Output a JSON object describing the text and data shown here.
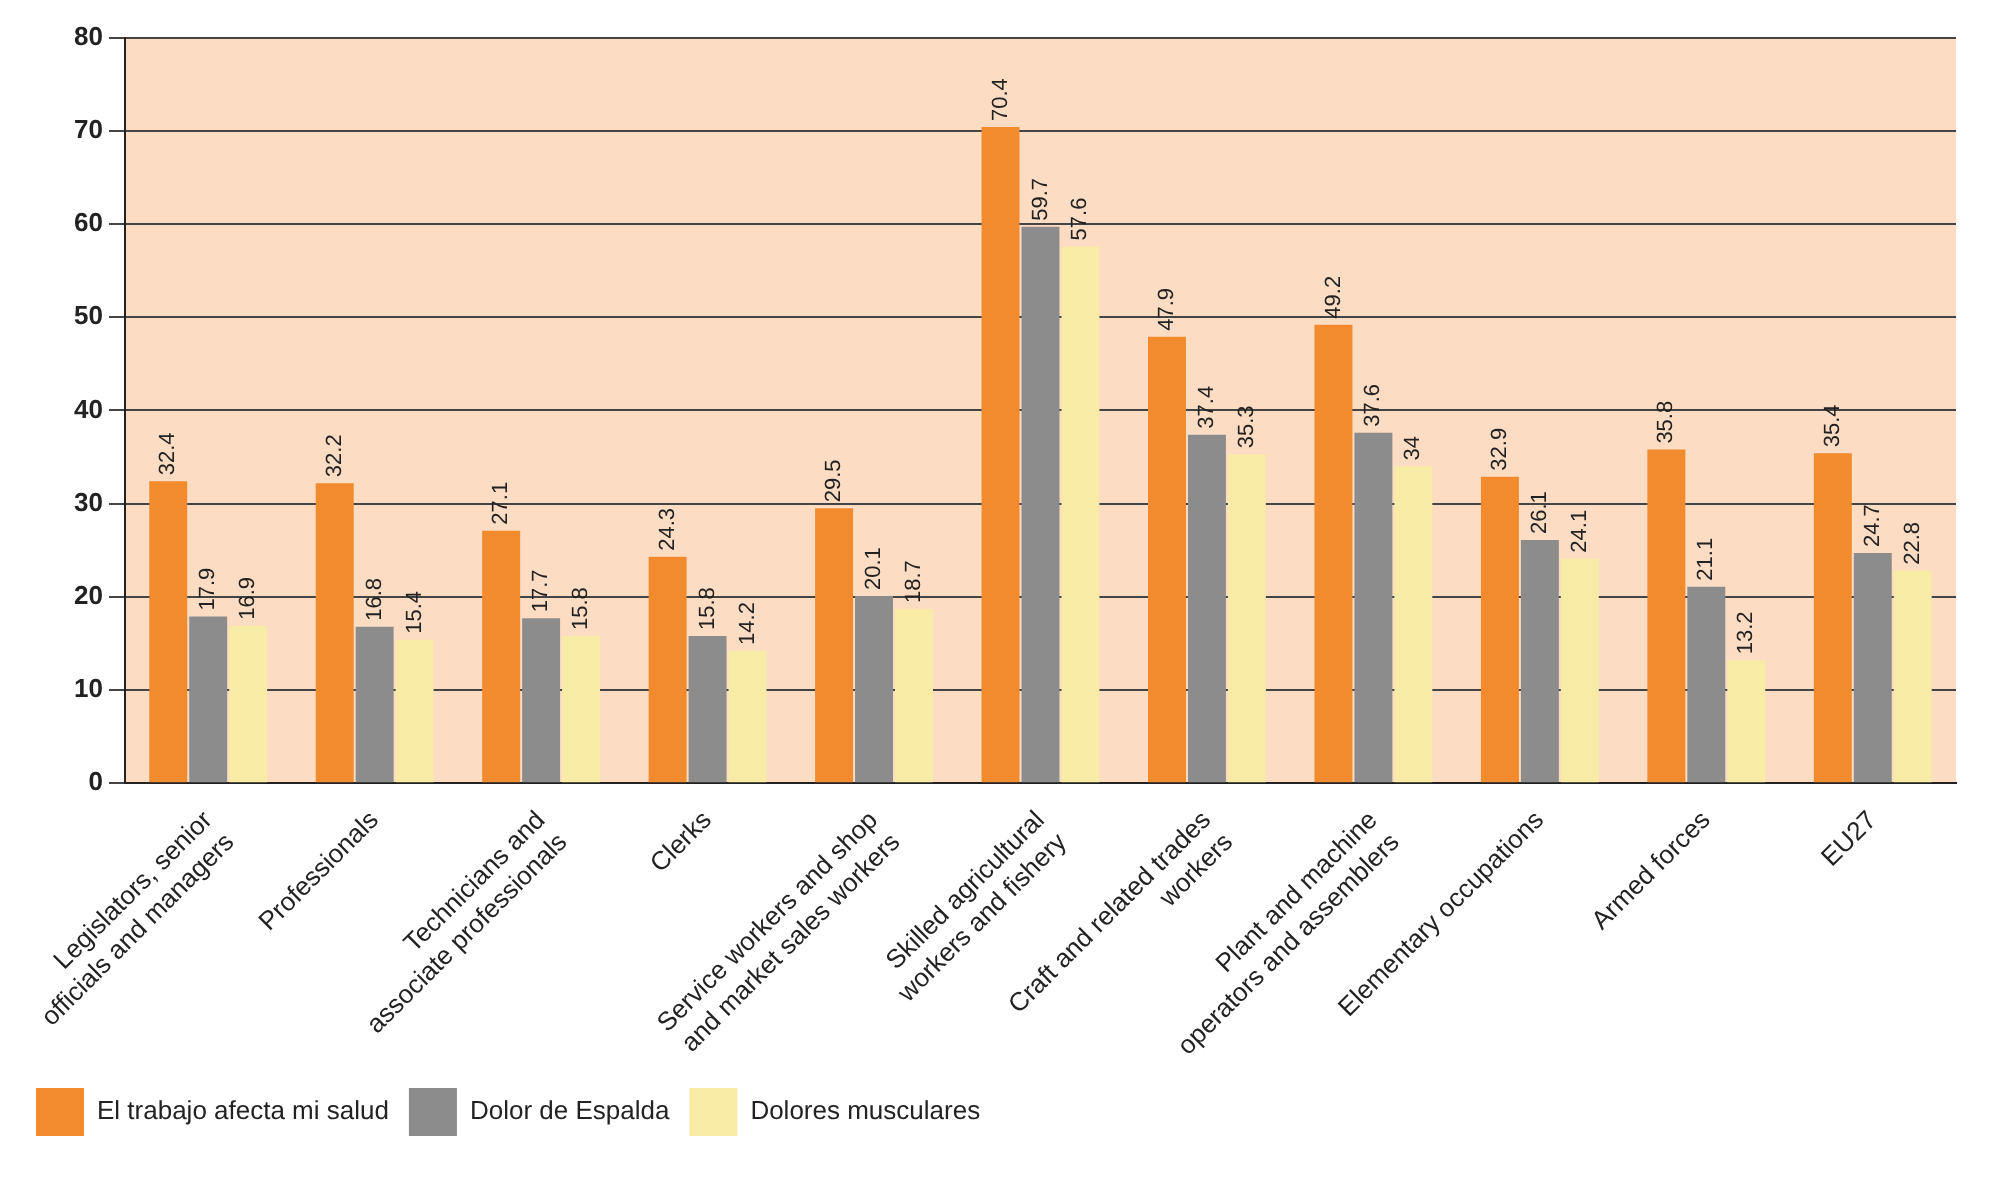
{
  "chart_data": {
    "type": "bar",
    "categories": [
      "Legislators, senior officials and managers",
      "Professionals",
      "Technicians and associate professionals",
      "Clerks",
      "Service workers and shop and market sales workers",
      "Skilled agricultural workers and fishery",
      "Craft and related trades workers",
      "Plant and machine operators and assemblers",
      "Elementary occupations",
      "Armed forces",
      "EU27"
    ],
    "series": [
      {
        "name": "El trabajo afecta mi salud",
        "color": "#f28a2e",
        "values": [
          32.4,
          32.2,
          27.1,
          24.3,
          29.5,
          70.4,
          47.9,
          49.2,
          32.9,
          35.8,
          35.4
        ]
      },
      {
        "name": "Dolor de Espalda",
        "color": "#8c8c8c",
        "values": [
          17.9,
          16.8,
          17.7,
          15.8,
          20.1,
          59.7,
          37.4,
          37.6,
          26.1,
          21.1,
          24.7
        ]
      },
      {
        "name": "Dolores musculares",
        "color": "#f8eba6",
        "values": [
          16.9,
          15.4,
          15.8,
          14.2,
          18.7,
          57.6,
          35.3,
          34,
          24.1,
          13.2,
          22.8
        ]
      }
    ],
    "ylim": [
      0,
      80
    ],
    "yticks": [
      0,
      10,
      20,
      30,
      40,
      50,
      60,
      70,
      80
    ],
    "grid": "y",
    "legend": "bottom left",
    "data_labels": true
  }
}
